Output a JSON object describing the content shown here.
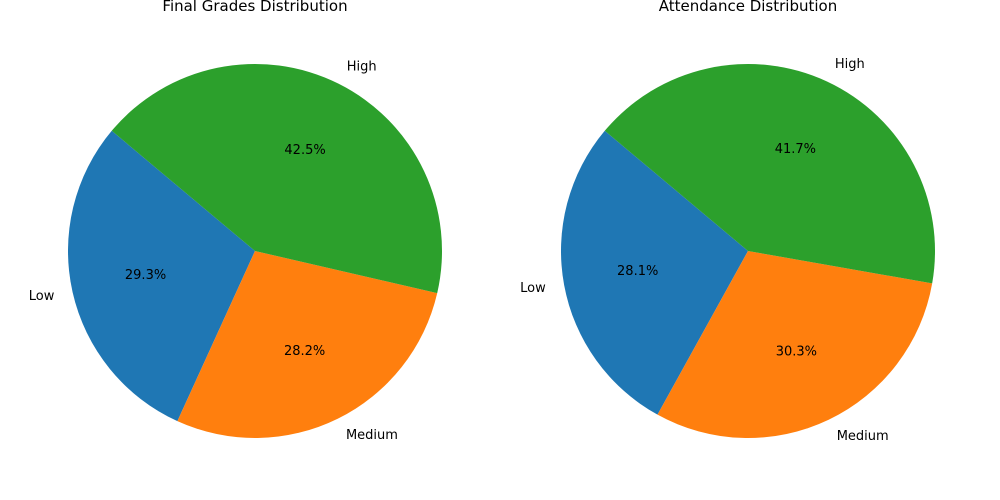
{
  "chart_data": [
    {
      "type": "pie",
      "title": "Final Grades Distribution",
      "categories": [
        "Low",
        "Medium",
        "High"
      ],
      "values": [
        29.3,
        28.2,
        42.5
      ],
      "labels": [
        "29.3%",
        "28.2%",
        "42.5%"
      ],
      "colors": [
        "#1f77b4",
        "#ff7f0e",
        "#2ca02c"
      ],
      "start_angle_deg": 140,
      "legend": "none"
    },
    {
      "type": "pie",
      "title": "Attendance Distribution",
      "categories": [
        "Low",
        "Medium",
        "High"
      ],
      "values": [
        28.1,
        30.3,
        41.7
      ],
      "labels": [
        "28.1%",
        "30.3%",
        "41.7%"
      ],
      "colors": [
        "#1f77b4",
        "#ff7f0e",
        "#2ca02c"
      ],
      "start_angle_deg": 140,
      "legend": "none"
    }
  ]
}
